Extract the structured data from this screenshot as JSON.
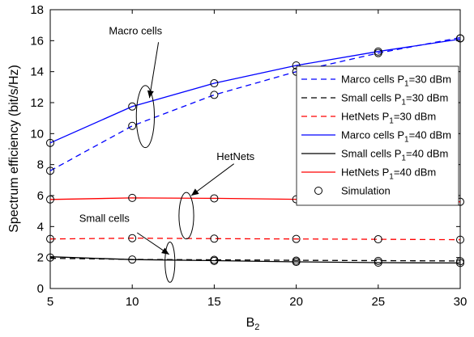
{
  "chart_data": {
    "type": "line",
    "xlabel": "B",
    "xlabel_sub": "2",
    "ylabel": "Spectrum efficiency (bit/s/Hz)",
    "xlim": [
      5,
      30
    ],
    "ylim": [
      0,
      18
    ],
    "xticks": [
      5,
      10,
      15,
      20,
      25,
      30
    ],
    "yticks": [
      0,
      2,
      4,
      6,
      8,
      10,
      12,
      14,
      16,
      18
    ],
    "grid": false,
    "legend_position": "right",
    "x": [
      5,
      10,
      15,
      20,
      25,
      30
    ],
    "series": [
      {
        "name": "Marco cells P1=30 dBm",
        "label_main": "Marco cells P",
        "label_sub": "1",
        "label_tail": "=30 dBm",
        "color": "#0000ff",
        "dash": "dashed",
        "values": [
          7.6,
          10.5,
          12.5,
          14.0,
          15.2,
          16.2
        ]
      },
      {
        "name": "Small cells P1=30 dBm",
        "label_main": "Small cells P",
        "label_sub": "1",
        "label_tail": "=30 dBm",
        "color": "#000000",
        "dash": "dashed",
        "values": [
          1.95,
          1.88,
          1.85,
          1.82,
          1.8,
          1.78
        ]
      },
      {
        "name": "HetNets P1=30 dBm",
        "label_main": "HetNets P",
        "label_sub": "1",
        "label_tail": "=30 dBm",
        "color": "#ff0000",
        "dash": "dashed",
        "values": [
          3.2,
          3.25,
          3.22,
          3.2,
          3.18,
          3.15
        ]
      },
      {
        "name": "Marco cells P1=40 dBm",
        "label_main": "Marco cells P",
        "label_sub": "1",
        "label_tail": "=40 dBm",
        "color": "#0000ff",
        "dash": "solid",
        "values": [
          9.4,
          11.75,
          13.25,
          14.4,
          15.3,
          16.1
        ]
      },
      {
        "name": "Small cells P1=40 dBm",
        "label_main": "Small cells P",
        "label_sub": "1",
        "label_tail": "=40 dBm",
        "color": "#000000",
        "dash": "solid",
        "values": [
          2.05,
          1.87,
          1.8,
          1.72,
          1.67,
          1.65
        ]
      },
      {
        "name": "HetNets P1=40 dBm",
        "label_main": "HetNets P",
        "label_sub": "1",
        "label_tail": "=40 dBm",
        "color": "#ff0000",
        "dash": "solid",
        "values": [
          5.75,
          5.85,
          5.82,
          5.76,
          5.68,
          5.6
        ]
      }
    ],
    "simulation": {
      "name": "Simulation",
      "marker": "circle",
      "points": [
        [
          5,
          9.4
        ],
        [
          10,
          11.75
        ],
        [
          15,
          13.25
        ],
        [
          20,
          14.4
        ],
        [
          25,
          15.3
        ],
        [
          30,
          16.15
        ],
        [
          5,
          7.6
        ],
        [
          10,
          10.5
        ],
        [
          15,
          12.5
        ],
        [
          20,
          14.0
        ],
        [
          25,
          15.2
        ],
        [
          30,
          16.15
        ],
        [
          5,
          5.75
        ],
        [
          10,
          5.85
        ],
        [
          15,
          5.82
        ],
        [
          20,
          5.76
        ],
        [
          25,
          5.68
        ],
        [
          30,
          5.6
        ],
        [
          5,
          3.2
        ],
        [
          10,
          3.25
        ],
        [
          15,
          3.22
        ],
        [
          20,
          3.2
        ],
        [
          25,
          3.18
        ],
        [
          30,
          3.15
        ],
        [
          5,
          2.0
        ],
        [
          10,
          1.87
        ],
        [
          15,
          1.85
        ],
        [
          20,
          1.8
        ],
        [
          25,
          1.78
        ],
        [
          30,
          1.76
        ],
        [
          15,
          1.78
        ],
        [
          20,
          1.72
        ],
        [
          25,
          1.67
        ],
        [
          30,
          1.65
        ]
      ]
    },
    "annotations": [
      {
        "text": "Macro cells",
        "text_at": [
          10.2,
          16.4
        ],
        "ellipse_center": [
          10.8,
          11.1
        ],
        "ellipse_rx": 0.55,
        "ellipse_ry": 2.0,
        "arrow_from": [
          11.6,
          15.9
        ],
        "arrow_to": [
          11.05,
          12.3
        ]
      },
      {
        "text": "HetNets",
        "text_at": [
          16.3,
          8.3
        ],
        "ellipse_center": [
          13.3,
          4.7
        ],
        "ellipse_rx": 0.45,
        "ellipse_ry": 1.5,
        "arrow_from": [
          16.2,
          8.05
        ],
        "arrow_to": [
          13.6,
          6.0
        ]
      },
      {
        "text": "Small cells",
        "text_at": [
          8.3,
          4.3
        ],
        "ellipse_center": [
          12.3,
          1.7
        ],
        "ellipse_rx": 0.3,
        "ellipse_ry": 1.3,
        "arrow_from": [
          10.3,
          3.6
        ],
        "arrow_to": [
          12.25,
          2.2
        ]
      }
    ]
  }
}
